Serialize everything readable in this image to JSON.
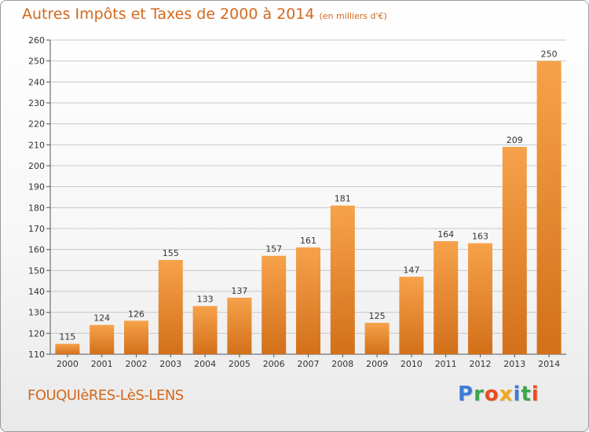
{
  "title": "Autres Impôts et Taxes de 2000 à 2014",
  "subtitle": "(en milliers d'€)",
  "commune": "FOUQUIèRES-LèS-LENS",
  "logo": {
    "letters": [
      "P",
      "r",
      "o",
      "x",
      "i",
      "t",
      "i"
    ],
    "colors": [
      "#3b7dd8",
      "#3aa64c",
      "#e84c1c",
      "#f2a81d",
      "#3b7dd8",
      "#3aa64c",
      "#e84c1c"
    ]
  },
  "colors": {
    "bar_top": "#f6a24a",
    "bar_bottom": "#d3701a",
    "title": "#d2691e",
    "grid": "#c8c8c8"
  },
  "chart_data": {
    "type": "bar",
    "title": "Autres Impôts et Taxes de 2000 à 2014",
    "subtitle": "(en milliers d'€)",
    "xlabel": "",
    "ylabel": "",
    "ylim": [
      110,
      260
    ],
    "yticks": [
      110,
      120,
      130,
      140,
      150,
      160,
      170,
      180,
      190,
      200,
      210,
      220,
      230,
      240,
      250,
      260
    ],
    "grid": true,
    "categories": [
      "2000",
      "2001",
      "2002",
      "2003",
      "2004",
      "2005",
      "2006",
      "2007",
      "2008",
      "2009",
      "2010",
      "2011",
      "2012",
      "2013",
      "2014"
    ],
    "values": [
      115,
      124,
      126,
      155,
      133,
      137,
      157,
      161,
      181,
      125,
      147,
      164,
      163,
      209,
      250
    ]
  }
}
